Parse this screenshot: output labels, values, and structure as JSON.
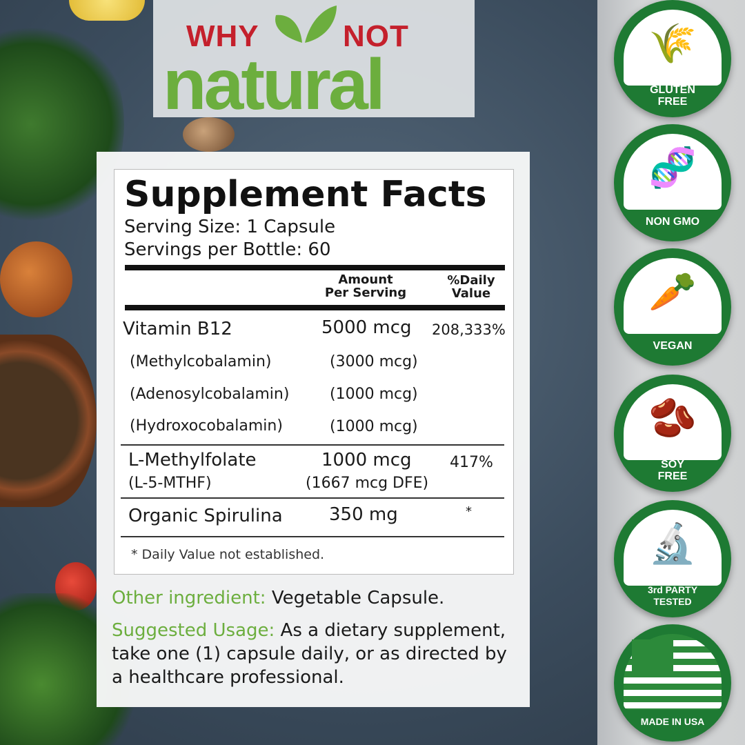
{
  "brand": {
    "word1": "WHY",
    "word2": "NOT",
    "word3": "natural"
  },
  "facts": {
    "title": "Supplement Facts",
    "serving_size": "Serving Size: 1 Capsule",
    "servings_per": "Servings per Bottle: 60",
    "col_amount": [
      "Amount",
      "Per Serving"
    ],
    "col_dv": [
      "%Daily",
      "Value"
    ],
    "rows": [
      {
        "name": "Vitamin B12",
        "amount": "5000 mcg",
        "dv": "208,333%"
      },
      {
        "name": "(Methylcobalamin)",
        "amount": "(3000 mcg)"
      },
      {
        "name": "(Adenosylcobalamin)",
        "amount": "(1000 mcg)"
      },
      {
        "name": "(Hydroxocobalamin)",
        "amount": "(1000 mcg)"
      },
      {
        "name": "L-Methylfolate",
        "sub": "(L-5-MTHF)",
        "amount": "1000 mcg",
        "amount_sub": "(1667 mcg DFE)",
        "dv": "417%"
      },
      {
        "name": "Organic Spirulina",
        "amount": "350 mg",
        "dv": "*"
      }
    ],
    "footnote": "* Daily Value not established."
  },
  "other": {
    "label": "Other ingredient:",
    "text": "Vegetable Capsule."
  },
  "usage": {
    "label": "Suggested Usage:",
    "line1": "As a dietary supplement,",
    "line2": "take one (1) capsule daily, or as directed by",
    "line3": "a healthcare professional."
  },
  "badges": [
    {
      "icon": "wheat-crossed-icon",
      "label1": "GLUTEN",
      "label2": "FREE"
    },
    {
      "icon": "dna-crossed-icon",
      "label1": "NON GMO",
      "label2": ""
    },
    {
      "icon": "vegetables-icon",
      "label1": "VEGAN",
      "label2": ""
    },
    {
      "icon": "soybean-crossed-icon",
      "label1": "SOY",
      "label2": "FREE"
    },
    {
      "icon": "microscope-icon",
      "label1": "3rd PARTY",
      "label2": "TESTED"
    },
    {
      "icon": "usa-flag-icon",
      "label1": "MADE IN USA",
      "label2": ""
    }
  ],
  "colors": {
    "brand_green": "#6cae3e",
    "brand_red": "#c4202c",
    "badge_green": "#1e7a33"
  }
}
